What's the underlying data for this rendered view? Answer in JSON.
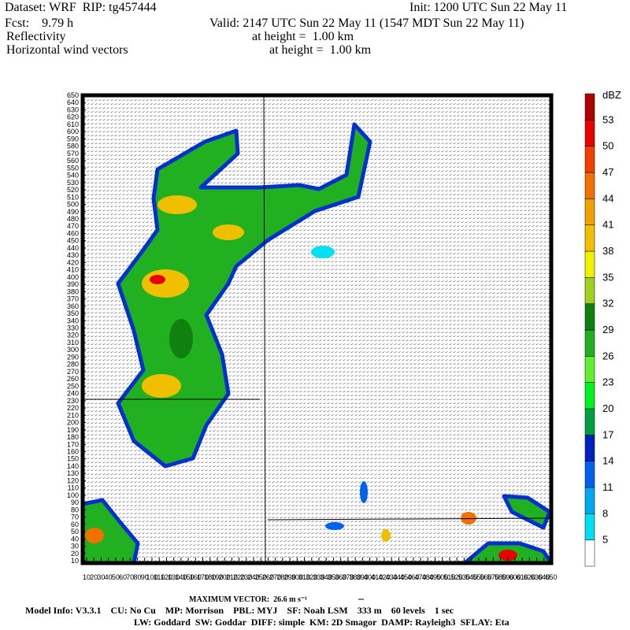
{
  "header": {
    "dataset": "Dataset: WRF  RIP: tg457444",
    "init": "Init: 1200 UTC Sun 22 May 11",
    "fcst": "Fcst:    9.79 h",
    "valid": "Valid: 2147 UTC Sun 22 May 11 (1547 MDT Sun 22 May 11)",
    "field1": "Reflectivity",
    "field1_height": "at height =  1.00 km",
    "field2": "Horizontal wind vectors",
    "field2_height": "at height =  1.00 km"
  },
  "plot": {
    "yticks": [
      10,
      20,
      30,
      40,
      50,
      60,
      70,
      80,
      90,
      100,
      110,
      120,
      130,
      140,
      150,
      160,
      170,
      180,
      190,
      200,
      210,
      220,
      230,
      240,
      250,
      260,
      270,
      280,
      290,
      300,
      310,
      320,
      330,
      340,
      350,
      360,
      370,
      380,
      390,
      400,
      410,
      420,
      430,
      440,
      450,
      460,
      470,
      480,
      490,
      500,
      510,
      520,
      530,
      540,
      550,
      560,
      570,
      580,
      590,
      600,
      610,
      620,
      630,
      640,
      650
    ],
    "xticks": [
      10,
      20,
      30,
      40,
      50,
      60,
      70,
      80,
      90,
      100,
      110,
      120,
      130,
      140,
      150,
      160,
      170,
      180,
      190,
      200,
      210,
      220,
      230,
      240,
      250,
      260,
      270,
      280,
      290,
      300,
      310,
      320,
      330,
      340,
      350,
      360,
      370,
      380,
      390,
      400,
      410,
      420,
      430,
      440,
      450,
      460,
      470,
      480,
      490,
      500,
      510,
      520,
      530,
      540,
      550,
      560,
      570,
      580,
      590,
      600,
      610,
      620,
      630,
      640,
      650
    ],
    "lim": [
      10,
      650
    ]
  },
  "colorbar": {
    "unit": "dBZ",
    "levels": [
      5,
      8,
      11,
      14,
      17,
      20,
      23,
      26,
      29,
      32,
      35,
      38,
      41,
      44,
      47,
      50,
      53
    ],
    "colors": [
      "#ffffff",
      "#00e0f0",
      "#00a8f0",
      "#0060f0",
      "#0020c0",
      "#00a040",
      "#00f020",
      "#60f030",
      "#20b020",
      "#108010",
      "#a0d020",
      "#f0f000",
      "#f0c000",
      "#f0a000",
      "#f07000",
      "#f04000",
      "#e80000",
      "#b00000"
    ]
  },
  "footer": {
    "max_vector": "MAXIMUM VECTOR:  26.6 m s⁻¹",
    "model_info": "Model Info: V3.3.1    CU: No Cu    MP: Morrison    PBL: MYJ    SF: Noah LSM    333 m    60 levels    1 sec",
    "physics": "LW: Goddard  SW: Goddar  DIFF: simple  KM: 2D Smagor  DAMP: Rayleigh3  SFLAY: Eta"
  }
}
